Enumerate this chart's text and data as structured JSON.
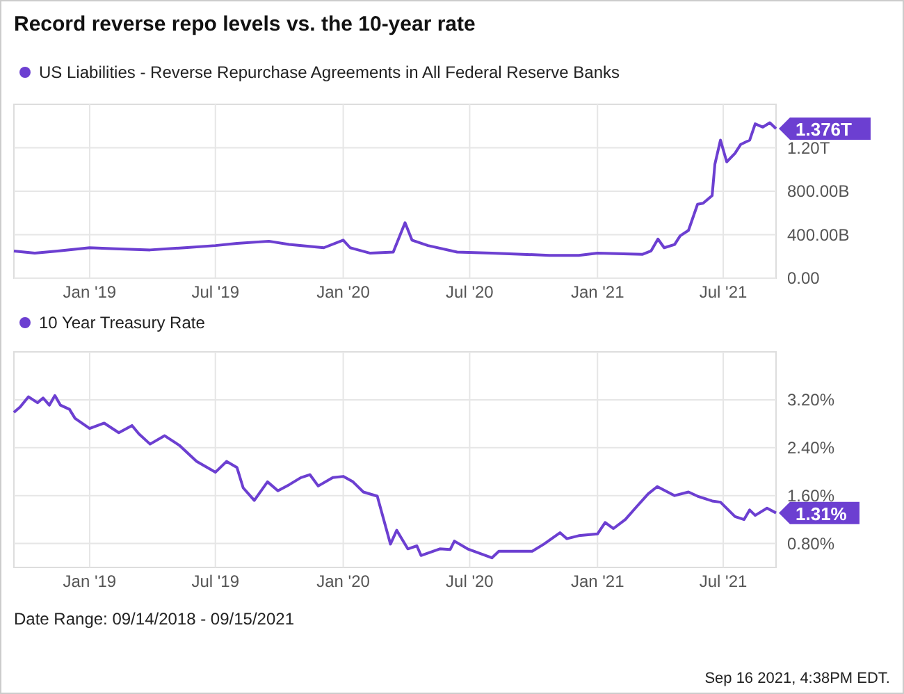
{
  "chart_data": [
    {
      "type": "line",
      "title": "Record reverse repo levels vs. the 10-year rate",
      "legend": "top left",
      "grid": true,
      "marker": "none",
      "line_style": "solid",
      "xlim": [
        "2018-09-14",
        "2021-09-15"
      ],
      "xticks": [
        {
          "value": "2019-01-01",
          "label": "Jan '19"
        },
        {
          "value": "2019-07-01",
          "label": "Jul '19"
        },
        {
          "value": "2020-01-01",
          "label": "Jan '20"
        },
        {
          "value": "2020-07-01",
          "label": "Jul '20"
        },
        {
          "value": "2021-01-01",
          "label": "Jan '21"
        },
        {
          "value": "2021-07-01",
          "label": "Jul '21"
        }
      ],
      "ylim": [
        0,
        1600000000000
      ],
      "yticks": [
        {
          "value": 0,
          "label": "0.00"
        },
        {
          "value": 400000000000,
          "label": "400.00B"
        },
        {
          "value": 800000000000,
          "label": "800.00B"
        },
        {
          "value": 1200000000000,
          "label": "1.20T"
        }
      ],
      "annotations": [
        {
          "text": "1.376T",
          "x": "2021-09-15",
          "y": 1376000000000
        }
      ],
      "series": [
        {
          "name": "US Liabilities - Reverse Repurchase Agreements in All Federal Reserve Banks",
          "color": "#6c3fd1",
          "x": [
            "2018-09-14",
            "2018-10-14",
            "2018-11-16",
            "2019-01-01",
            "2019-02-07",
            "2019-03-29",
            "2019-05-18",
            "2019-07-01",
            "2019-08-01",
            "2019-09-16",
            "2019-10-15",
            "2019-12-04",
            "2020-01-01",
            "2020-01-11",
            "2020-02-09",
            "2020-03-13",
            "2020-03-30",
            "2020-04-09",
            "2020-05-02",
            "2020-06-13",
            "2020-08-02",
            "2020-10-24",
            "2020-12-05",
            "2021-01-01",
            "2021-03-07",
            "2021-03-19",
            "2021-03-29",
            "2021-04-07",
            "2021-04-22",
            "2021-04-30",
            "2021-05-12",
            "2021-05-25",
            "2021-06-02",
            "2021-06-15",
            "2021-06-19",
            "2021-06-27",
            "2021-07-06",
            "2021-07-18",
            "2021-07-26",
            "2021-08-08",
            "2021-08-16",
            "2021-08-27",
            "2021-09-06",
            "2021-09-15"
          ],
          "values": [
            250000000000,
            230000000000,
            250000000000,
            280000000000,
            270000000000,
            260000000000,
            280000000000,
            300000000000,
            320000000000,
            340000000000,
            310000000000,
            280000000000,
            350000000000,
            280000000000,
            230000000000,
            240000000000,
            510000000000,
            350000000000,
            300000000000,
            240000000000,
            230000000000,
            210000000000,
            210000000000,
            230000000000,
            220000000000,
            250000000000,
            360000000000,
            280000000000,
            310000000000,
            390000000000,
            440000000000,
            680000000000,
            690000000000,
            760000000000,
            1050000000000,
            1270000000000,
            1070000000000,
            1150000000000,
            1230000000000,
            1270000000000,
            1420000000000,
            1390000000000,
            1430000000000,
            1376000000000
          ]
        }
      ]
    },
    {
      "type": "line",
      "legend": "top left",
      "grid": true,
      "marker": "none",
      "line_style": "solid",
      "xlim": [
        "2018-09-14",
        "2021-09-15"
      ],
      "xticks": [
        {
          "value": "2019-01-01",
          "label": "Jan '19"
        },
        {
          "value": "2019-07-01",
          "label": "Jul '19"
        },
        {
          "value": "2020-01-01",
          "label": "Jan '20"
        },
        {
          "value": "2020-07-01",
          "label": "Jul '20"
        },
        {
          "value": "2021-01-01",
          "label": "Jan '21"
        },
        {
          "value": "2021-07-01",
          "label": "Jul '21"
        }
      ],
      "ylim": [
        0.4,
        4.0
      ],
      "yticks": [
        {
          "value": 0.8,
          "label": "0.80%"
        },
        {
          "value": 1.6,
          "label": "1.60%"
        },
        {
          "value": 2.4,
          "label": "2.40%"
        },
        {
          "value": 3.2,
          "label": "3.20%"
        }
      ],
      "annotations": [
        {
          "text": "1.31%",
          "x": "2021-09-15",
          "y": 1.31
        },
        "Date Range: 09/14/2018 - 09/15/2021",
        "Sep 16 2021, 4:38PM EDT."
      ],
      "series": [
        {
          "name": "10 Year Treasury Rate",
          "color": "#6c3fd1",
          "x": [
            "2018-09-14",
            "2018-09-23",
            "2018-10-05",
            "2018-10-18",
            "2018-10-26",
            "2018-11-04",
            "2018-11-12",
            "2018-11-20",
            "2018-12-03",
            "2018-12-11",
            "2019-01-01",
            "2019-01-22",
            "2019-02-12",
            "2019-03-03",
            "2019-03-13",
            "2019-03-29",
            "2019-04-19",
            "2019-05-10",
            "2019-06-04",
            "2019-07-01",
            "2019-07-17",
            "2019-08-01",
            "2019-08-10",
            "2019-08-26",
            "2019-09-14",
            "2019-09-29",
            "2019-10-15",
            "2019-11-01",
            "2019-11-14",
            "2019-11-26",
            "2019-12-17",
            "2020-01-01",
            "2020-01-15",
            "2020-01-30",
            "2020-02-19",
            "2020-03-09",
            "2020-03-18",
            "2020-04-03",
            "2020-04-16",
            "2020-04-22",
            "2020-05-19",
            "2020-06-03",
            "2020-06-09",
            "2020-06-28",
            "2020-08-02",
            "2020-08-12",
            "2020-09-29",
            "2020-10-16",
            "2020-11-08",
            "2020-11-18",
            "2020-12-05",
            "2021-01-01",
            "2021-01-12",
            "2021-01-24",
            "2021-02-10",
            "2021-02-26",
            "2021-03-15",
            "2021-03-28",
            "2021-04-22",
            "2021-05-12",
            "2021-05-25",
            "2021-06-15",
            "2021-06-27",
            "2021-07-18",
            "2021-07-31",
            "2021-08-08",
            "2021-08-16",
            "2021-09-02",
            "2021-09-15"
          ],
          "values": [
            2.99,
            3.08,
            3.25,
            3.15,
            3.23,
            3.11,
            3.27,
            3.11,
            3.04,
            2.89,
            2.72,
            2.81,
            2.65,
            2.77,
            2.63,
            2.46,
            2.6,
            2.44,
            2.17,
            1.99,
            2.17,
            2.07,
            1.73,
            1.52,
            1.83,
            1.68,
            1.78,
            1.9,
            1.95,
            1.76,
            1.9,
            1.92,
            1.83,
            1.66,
            1.59,
            0.79,
            1.02,
            0.71,
            0.76,
            0.6,
            0.71,
            0.7,
            0.84,
            0.71,
            0.56,
            0.67,
            0.67,
            0.79,
            0.98,
            0.88,
            0.93,
            0.96,
            1.15,
            1.05,
            1.2,
            1.41,
            1.63,
            1.75,
            1.6,
            1.66,
            1.59,
            1.51,
            1.49,
            1.25,
            1.2,
            1.36,
            1.27,
            1.39,
            1.31
          ]
        }
      ]
    }
  ]
}
